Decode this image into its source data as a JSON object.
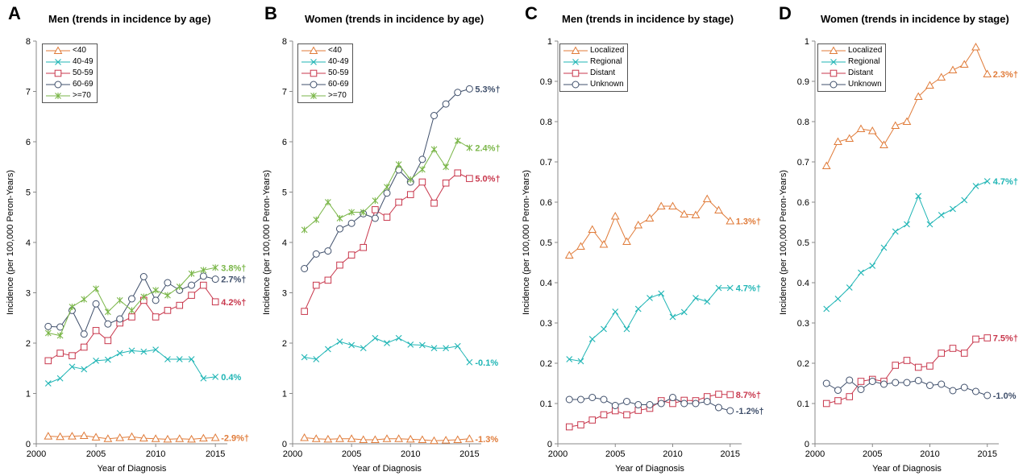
{
  "chart_data": [
    {
      "type": "line",
      "panel_letter": "A",
      "title": "Men (trends in incidence by age)",
      "xlabel": "Year of Diagnosis",
      "ylabel": "Incidence (per 100,000 Peron-Years)",
      "xlim": [
        2000,
        2016
      ],
      "ylim": [
        0,
        8
      ],
      "xticks": [
        2000,
        2005,
        2010,
        2015
      ],
      "yticks": [
        0,
        1,
        2,
        3,
        4,
        5,
        6,
        7,
        8
      ],
      "y_decimals": 0,
      "x": [
        2001,
        2002,
        2003,
        2004,
        2005,
        2006,
        2007,
        2008,
        2009,
        2010,
        2011,
        2012,
        2013,
        2014,
        2015
      ],
      "legend_position": "top-left",
      "series": [
        {
          "name": "<40",
          "color": "#E07B39",
          "marker": "triangle",
          "end_label": "-2.9%†",
          "values": [
            0.15,
            0.14,
            0.15,
            0.16,
            0.13,
            0.1,
            0.12,
            0.14,
            0.11,
            0.1,
            0.09,
            0.1,
            0.09,
            0.11,
            0.12
          ]
        },
        {
          "name": "40-49",
          "color": "#1FB5B5",
          "marker": "x",
          "end_label": "0.4%",
          "values": [
            1.2,
            1.3,
            1.53,
            1.48,
            1.65,
            1.67,
            1.8,
            1.85,
            1.83,
            1.87,
            1.68,
            1.68,
            1.68,
            1.3,
            1.33
          ]
        },
        {
          "name": "50-59",
          "color": "#C8374C",
          "marker": "square",
          "end_label": "4.2%†",
          "values": [
            1.65,
            1.8,
            1.75,
            1.92,
            2.25,
            2.05,
            2.4,
            2.52,
            2.85,
            2.52,
            2.65,
            2.75,
            2.95,
            3.15,
            2.82
          ]
        },
        {
          "name": "60-69",
          "color": "#3F4F6B",
          "marker": "circle",
          "end_label": "2.7%†",
          "values": [
            2.33,
            2.32,
            2.65,
            2.18,
            2.78,
            2.38,
            2.48,
            2.88,
            3.32,
            2.85,
            3.2,
            3.05,
            3.15,
            3.33,
            3.27
          ]
        },
        {
          "name": ">=70",
          "color": "#7AB648",
          "marker": "star",
          "end_label": "3.8%†",
          "values": [
            2.2,
            2.15,
            2.72,
            2.87,
            3.08,
            2.62,
            2.85,
            2.65,
            2.92,
            3.05,
            2.95,
            3.12,
            3.38,
            3.45,
            3.5
          ]
        }
      ]
    },
    {
      "type": "line",
      "panel_letter": "B",
      "title": "Women (trends in incidence by age)",
      "xlabel": "Year of Diagnosis",
      "ylabel": "Incidence (per 100,000 Peron-Years)",
      "xlim": [
        2000,
        2016
      ],
      "ylim": [
        0,
        8
      ],
      "xticks": [
        2000,
        2005,
        2010,
        2015
      ],
      "yticks": [
        0,
        1,
        2,
        3,
        4,
        5,
        6,
        7,
        8
      ],
      "y_decimals": 0,
      "x": [
        2001,
        2002,
        2003,
        2004,
        2005,
        2006,
        2007,
        2008,
        2009,
        2010,
        2011,
        2012,
        2013,
        2014,
        2015
      ],
      "legend_position": "top-left",
      "series": [
        {
          "name": "<40",
          "color": "#E07B39",
          "marker": "triangle",
          "end_label": "-1.3%",
          "values": [
            0.12,
            0.1,
            0.09,
            0.1,
            0.1,
            0.08,
            0.08,
            0.1,
            0.1,
            0.09,
            0.08,
            0.06,
            0.07,
            0.08,
            0.1
          ]
        },
        {
          "name": "40-49",
          "color": "#1FB5B5",
          "marker": "x",
          "end_label": "-0.1%",
          "values": [
            1.72,
            1.68,
            1.88,
            2.03,
            1.96,
            1.9,
            2.1,
            2.0,
            2.1,
            1.97,
            1.96,
            1.9,
            1.9,
            1.94,
            1.62
          ]
        },
        {
          "name": "50-59",
          "color": "#C8374C",
          "marker": "square",
          "end_label": "5.0%†",
          "values": [
            2.63,
            3.15,
            3.25,
            3.55,
            3.75,
            3.9,
            4.65,
            4.5,
            4.8,
            4.95,
            5.2,
            4.78,
            5.18,
            5.38,
            5.27
          ]
        },
        {
          "name": "60-69",
          "color": "#3F4F6B",
          "marker": "circle",
          "end_label": "5.3%†",
          "values": [
            3.48,
            3.77,
            3.83,
            4.27,
            4.38,
            4.57,
            4.48,
            4.98,
            5.44,
            5.2,
            5.65,
            6.52,
            6.75,
            6.98,
            7.05
          ]
        },
        {
          "name": ">=70",
          "color": "#7AB648",
          "marker": "star",
          "end_label": "2.4%†",
          "values": [
            4.25,
            4.45,
            4.8,
            4.48,
            4.6,
            4.6,
            4.83,
            5.1,
            5.55,
            5.25,
            5.45,
            5.85,
            5.5,
            6.02,
            5.88
          ]
        }
      ]
    },
    {
      "type": "line",
      "panel_letter": "C",
      "title": "Men (trends in incidence by stage)",
      "xlabel": "Year of Diagnosis",
      "ylabel": "Incidence (per 100,000 Peron-Years)",
      "xlim": [
        2000,
        2016
      ],
      "ylim": [
        0,
        1
      ],
      "xticks": [
        2000,
        2005,
        2010,
        2015
      ],
      "yticks": [
        0,
        0.1,
        0.2,
        0.3,
        0.4,
        0.5,
        0.6,
        0.7,
        0.8,
        0.9,
        1
      ],
      "y_decimals": 1,
      "x": [
        2001,
        2002,
        2003,
        2004,
        2005,
        2006,
        2007,
        2008,
        2009,
        2010,
        2011,
        2012,
        2013,
        2014,
        2015
      ],
      "legend_position": "top-left",
      "series": [
        {
          "name": "Localized",
          "color": "#E07B39",
          "marker": "triangle",
          "end_label": "1.3%†",
          "values": [
            0.468,
            0.49,
            0.532,
            0.495,
            0.565,
            0.502,
            0.543,
            0.56,
            0.59,
            0.59,
            0.57,
            0.568,
            0.608,
            0.58,
            0.553
          ]
        },
        {
          "name": "Regional",
          "color": "#1FB5B5",
          "marker": "x",
          "end_label": "4.7%†",
          "values": [
            0.21,
            0.205,
            0.26,
            0.285,
            0.328,
            0.285,
            0.335,
            0.362,
            0.373,
            0.315,
            0.327,
            0.362,
            0.353,
            0.387,
            0.387
          ]
        },
        {
          "name": "Distant",
          "color": "#C8374C",
          "marker": "square",
          "end_label": "8.7%†",
          "values": [
            0.042,
            0.047,
            0.059,
            0.072,
            0.082,
            0.072,
            0.083,
            0.088,
            0.107,
            0.1,
            0.108,
            0.107,
            0.117,
            0.123,
            0.122
          ]
        },
        {
          "name": "Unknown",
          "color": "#3F4F6B",
          "marker": "circle",
          "end_label": "-1.2%†",
          "values": [
            0.11,
            0.11,
            0.115,
            0.11,
            0.095,
            0.105,
            0.097,
            0.097,
            0.1,
            0.115,
            0.1,
            0.1,
            0.105,
            0.09,
            0.082
          ]
        }
      ]
    },
    {
      "type": "line",
      "panel_letter": "D",
      "title": "Women (trends in incidence by stage)",
      "xlabel": "Year of Diagnosis",
      "ylabel": "Incidence (per 100,000 Peron-Years)",
      "xlim": [
        2000,
        2016
      ],
      "ylim": [
        0,
        1
      ],
      "xticks": [
        2000,
        2005,
        2010,
        2015
      ],
      "yticks": [
        0,
        0.1,
        0.2,
        0.3,
        0.4,
        0.5,
        0.6,
        0.7,
        0.8,
        0.9,
        1
      ],
      "y_decimals": 1,
      "x": [
        2001,
        2002,
        2003,
        2004,
        2005,
        2006,
        2007,
        2008,
        2009,
        2010,
        2011,
        2012,
        2013,
        2014,
        2015
      ],
      "legend_position": "top-left",
      "series": [
        {
          "name": "Localized",
          "color": "#E07B39",
          "marker": "triangle",
          "end_label": "2.3%†",
          "values": [
            0.69,
            0.75,
            0.758,
            0.782,
            0.777,
            0.742,
            0.79,
            0.8,
            0.862,
            0.89,
            0.91,
            0.928,
            0.942,
            0.985,
            0.918
          ]
        },
        {
          "name": "Regional",
          "color": "#1FB5B5",
          "marker": "x",
          "end_label": "4.7%†",
          "values": [
            0.335,
            0.36,
            0.388,
            0.425,
            0.442,
            0.487,
            0.527,
            0.545,
            0.615,
            0.545,
            0.568,
            0.583,
            0.605,
            0.64,
            0.652
          ]
        },
        {
          "name": "Distant",
          "color": "#C8374C",
          "marker": "square",
          "end_label": "7.5%†",
          "values": [
            0.1,
            0.107,
            0.117,
            0.155,
            0.16,
            0.155,
            0.195,
            0.207,
            0.19,
            0.193,
            0.225,
            0.237,
            0.225,
            0.26,
            0.263
          ]
        },
        {
          "name": "Unknown",
          "color": "#3F4F6B",
          "marker": "circle",
          "end_label": "-1.0%",
          "values": [
            0.15,
            0.133,
            0.158,
            0.135,
            0.155,
            0.148,
            0.152,
            0.152,
            0.157,
            0.145,
            0.148,
            0.132,
            0.14,
            0.13,
            0.12
          ]
        }
      ]
    }
  ]
}
